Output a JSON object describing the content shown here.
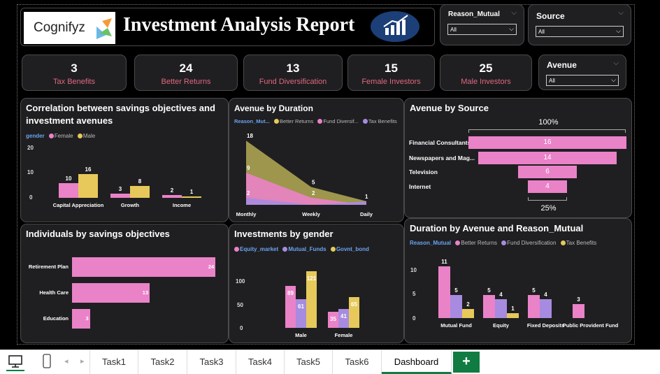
{
  "report": {
    "title": "Investment Analysis Report",
    "logo_text": "Cognifyz"
  },
  "slicers": {
    "reason": {
      "title": "Reason_Mutual",
      "value": "All"
    },
    "source": {
      "title": "Source",
      "value": "All"
    },
    "avenue": {
      "title": "Avenue",
      "value": "All"
    }
  },
  "kpis": [
    {
      "value": "3",
      "label": "Tax Benefits"
    },
    {
      "value": "24",
      "label": "Better Returns"
    },
    {
      "value": "13",
      "label": "Fund Diversification"
    },
    {
      "value": "15",
      "label": "Female Investors"
    },
    {
      "value": "25",
      "label": "Male Investors"
    }
  ],
  "colors": {
    "pink": "#ea82c8",
    "yellow": "#e6c95a",
    "purple": "#a78be0",
    "khaki": "#a59d4f",
    "blue_label": "#6aa3f0",
    "kpi_label": "#e0687f"
  },
  "chart_data": [
    {
      "id": "correlation",
      "type": "bar",
      "title": "Correlation between savings objectives and investment avenues",
      "legend_title": "gender",
      "categories": [
        "Capital Appreciation",
        "Growth",
        "Income"
      ],
      "series": [
        {
          "name": "Female",
          "values": [
            10,
            3,
            2
          ]
        },
        {
          "name": "Male",
          "values": [
            16,
            8,
            1
          ]
        }
      ],
      "yticks": [
        "20",
        "10",
        "0"
      ]
    },
    {
      "id": "duration",
      "type": "area",
      "title": "Avenue by Duration",
      "legend_title": "Reason_Mut...",
      "categories": [
        "Monthly",
        "Weekly",
        "Daily"
      ],
      "series": [
        {
          "name": "Better Returns",
          "values": [
            18,
            5,
            1
          ]
        },
        {
          "name": "Fund Diversif...",
          "values": [
            9,
            2,
            0
          ]
        },
        {
          "name": "Tax Benefits",
          "values": [
            2,
            0,
            1
          ]
        }
      ],
      "point_labels": [
        "18",
        "9",
        "2",
        "5",
        "2",
        "1"
      ]
    },
    {
      "id": "source",
      "type": "funnel",
      "title": "Avenue by Source",
      "categories": [
        "Financial Consultants",
        "Newspapers and Mag...",
        "Television",
        "Internet"
      ],
      "values": [
        16,
        14,
        6,
        4
      ],
      "top_label": "100%",
      "bottom_label": "25%"
    },
    {
      "id": "savings",
      "type": "bar",
      "title": "Individuals by savings objectives",
      "categories": [
        "Retirement Plan",
        "Health Care",
        "Education"
      ],
      "values": [
        24,
        13,
        3
      ]
    },
    {
      "id": "gender",
      "type": "bar",
      "title": "Investments by gender",
      "legend_title": "",
      "categories": [
        "Male",
        "Female"
      ],
      "series": [
        {
          "name": "Equity_market",
          "values": [
            89,
            35
          ]
        },
        {
          "name": "Mutual_Funds",
          "values": [
            61,
            41
          ]
        },
        {
          "name": "Govnt_bond",
          "values": [
            121,
            65
          ]
        }
      ],
      "yticks": [
        "100",
        "50",
        "0"
      ]
    },
    {
      "id": "avenue_reason",
      "type": "bar",
      "title": "Duration by Avenue and Reason_Mutual",
      "legend_title": "Reason_Mutual",
      "categories": [
        "Mutual Fund",
        "Equity",
        "Fixed Deposits",
        "Public Provident Fund"
      ],
      "series": [
        {
          "name": "Better Returns",
          "values": [
            11,
            5,
            5,
            3
          ]
        },
        {
          "name": "Fund Diversification",
          "values": [
            5,
            4,
            4,
            null
          ]
        },
        {
          "name": "Tax Benefits",
          "values": [
            2,
            1,
            null,
            null
          ]
        }
      ],
      "yticks": [
        "10",
        "5",
        "0"
      ]
    }
  ],
  "tabs": [
    "Task1",
    "Task2",
    "Task3",
    "Task4",
    "Task5",
    "Task6",
    "Dashboard"
  ],
  "active_tab": "Dashboard"
}
